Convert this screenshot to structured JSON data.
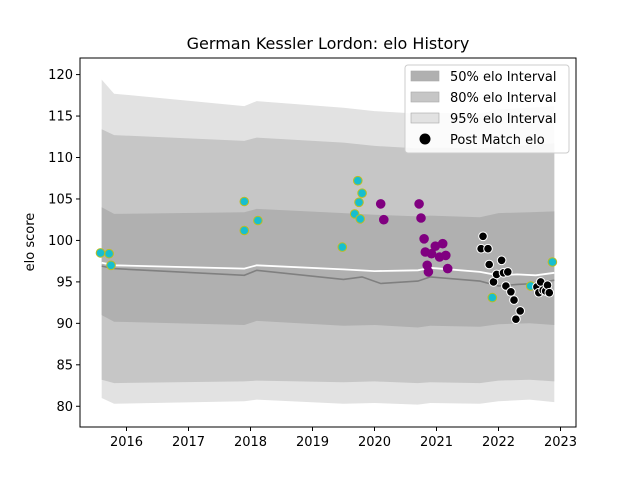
{
  "chart_data": {
    "type": "scatter",
    "title": "German Kessler Lordon: elo History",
    "xlabel": "",
    "ylabel": "elo score",
    "xlim": [
      2015.25,
      2023.25
    ],
    "ylim": [
      77.5,
      122.0
    ],
    "x_ticks": [
      "2016",
      "2017",
      "2018",
      "2019",
      "2020",
      "2021",
      "2022",
      "2023"
    ],
    "y_ticks": [
      "80",
      "85",
      "90",
      "95",
      "100",
      "105",
      "110",
      "115",
      "120"
    ],
    "legend_position": "top-right",
    "legend": [
      {
        "label": "50% elo Interval",
        "color": "#b0b0b0"
      },
      {
        "label": "80% elo Interval",
        "color": "#c6c6c6"
      },
      {
        "label": "95% elo Interval",
        "color": "#e2e2e2"
      },
      {
        "label": "Post Match elo",
        "color": "#000000"
      }
    ],
    "band_95": {
      "x": [
        2015.6,
        2015.8,
        2017.9,
        2018.1,
        2019.5,
        2020.0,
        2020.7,
        2020.9,
        2021.7,
        2022.0,
        2022.5,
        2022.9
      ],
      "upper": [
        119.4,
        117.7,
        116.2,
        116.8,
        116.0,
        115.6,
        115.3,
        115.4,
        115.3,
        115.8,
        116.0,
        116.2
      ],
      "lower": [
        81.0,
        80.3,
        80.6,
        80.8,
        80.3,
        80.4,
        80.2,
        80.4,
        80.3,
        80.6,
        80.8,
        80.5
      ]
    },
    "band_80": {
      "x": [
        2015.6,
        2015.8,
        2017.9,
        2018.1,
        2019.5,
        2020.0,
        2020.7,
        2020.9,
        2021.7,
        2022.0,
        2022.5,
        2022.9
      ],
      "upper": [
        113.4,
        112.7,
        112.0,
        112.4,
        111.8,
        111.4,
        111.1,
        111.2,
        111.1,
        111.3,
        111.5,
        111.7
      ],
      "lower": [
        83.2,
        82.8,
        83.0,
        83.1,
        82.9,
        83.0,
        82.8,
        82.9,
        82.8,
        83.1,
        83.2,
        83.0
      ]
    },
    "band_50": {
      "x": [
        2015.6,
        2015.8,
        2017.9,
        2018.1,
        2019.5,
        2020.0,
        2020.7,
        2020.9,
        2021.7,
        2022.0,
        2022.5,
        2022.9
      ],
      "upper": [
        104.0,
        103.2,
        103.4,
        103.8,
        103.3,
        103.1,
        102.9,
        103.0,
        102.8,
        103.3,
        103.4,
        103.5
      ],
      "lower": [
        91.0,
        90.2,
        89.8,
        90.3,
        89.7,
        89.8,
        89.5,
        89.7,
        89.6,
        89.9,
        90.0,
        89.8
      ]
    },
    "mean_line": {
      "x": [
        2015.6,
        2015.8,
        2017.9,
        2018.1,
        2019.5,
        2019.8,
        2020.1,
        2020.7,
        2020.9,
        2021.7,
        2022.0,
        2022.3,
        2022.6,
        2022.9
      ],
      "y": [
        96.9,
        96.6,
        95.8,
        96.4,
        95.3,
        95.6,
        94.8,
        95.1,
        95.6,
        95.1,
        94.5,
        94.7,
        94.8,
        95.2
      ]
    },
    "median_line": {
      "x": [
        2015.6,
        2015.8,
        2017.9,
        2018.1,
        2019.5,
        2020.0,
        2020.7,
        2020.9,
        2021.7,
        2022.0,
        2022.3,
        2022.6,
        2022.9
      ],
      "y": [
        97.3,
        97.0,
        96.6,
        97.0,
        96.5,
        96.3,
        96.4,
        96.7,
        96.2,
        95.8,
        95.9,
        95.8,
        96.1
      ]
    },
    "series": [
      {
        "color": "#17becf",
        "edge": "#bcbd22",
        "points": [
          {
            "x": 2015.58,
            "y": 98.5
          },
          {
            "x": 2015.72,
            "y": 98.4
          },
          {
            "x": 2015.75,
            "y": 97.0
          },
          {
            "x": 2017.9,
            "y": 104.7
          },
          {
            "x": 2017.9,
            "y": 101.2
          },
          {
            "x": 2018.12,
            "y": 102.4
          },
          {
            "x": 2019.48,
            "y": 99.2
          },
          {
            "x": 2019.68,
            "y": 103.2
          },
          {
            "x": 2019.73,
            "y": 107.2
          },
          {
            "x": 2019.75,
            "y": 104.6
          },
          {
            "x": 2019.77,
            "y": 102.6
          },
          {
            "x": 2019.8,
            "y": 105.7
          },
          {
            "x": 2021.9,
            "y": 93.1
          },
          {
            "x": 2022.52,
            "y": 94.5
          },
          {
            "x": 2022.87,
            "y": 97.4
          }
        ]
      },
      {
        "color": "#800080",
        "edge": "#800080",
        "points": [
          {
            "x": 2020.1,
            "y": 104.4
          },
          {
            "x": 2020.15,
            "y": 102.5
          },
          {
            "x": 2020.72,
            "y": 104.4
          },
          {
            "x": 2020.75,
            "y": 102.7
          },
          {
            "x": 2020.8,
            "y": 100.2
          },
          {
            "x": 2020.82,
            "y": 98.6
          },
          {
            "x": 2020.85,
            "y": 97.0
          },
          {
            "x": 2020.87,
            "y": 96.2
          },
          {
            "x": 2020.92,
            "y": 98.4
          },
          {
            "x": 2020.98,
            "y": 99.3
          },
          {
            "x": 2021.05,
            "y": 98.0
          },
          {
            "x": 2021.1,
            "y": 99.6
          },
          {
            "x": 2021.15,
            "y": 98.2
          },
          {
            "x": 2021.18,
            "y": 96.6
          }
        ]
      },
      {
        "color": "#000000",
        "edge": "#ffffff",
        "points": [
          {
            "x": 2021.72,
            "y": 99.0
          },
          {
            "x": 2021.75,
            "y": 100.5
          },
          {
            "x": 2021.83,
            "y": 99.0
          },
          {
            "x": 2021.85,
            "y": 97.1
          },
          {
            "x": 2021.92,
            "y": 95.0
          },
          {
            "x": 2021.97,
            "y": 95.9
          },
          {
            "x": 2022.05,
            "y": 97.6
          },
          {
            "x": 2022.08,
            "y": 96.1
          },
          {
            "x": 2022.12,
            "y": 94.5
          },
          {
            "x": 2022.15,
            "y": 96.2
          },
          {
            "x": 2022.2,
            "y": 93.8
          },
          {
            "x": 2022.25,
            "y": 92.8
          },
          {
            "x": 2022.28,
            "y": 90.5
          },
          {
            "x": 2022.35,
            "y": 91.5
          },
          {
            "x": 2022.62,
            "y": 94.4
          },
          {
            "x": 2022.65,
            "y": 93.7
          },
          {
            "x": 2022.68,
            "y": 95.0
          },
          {
            "x": 2022.72,
            "y": 94.0
          },
          {
            "x": 2022.76,
            "y": 93.9
          },
          {
            "x": 2022.79,
            "y": 94.6
          },
          {
            "x": 2022.82,
            "y": 93.7
          }
        ]
      }
    ]
  }
}
